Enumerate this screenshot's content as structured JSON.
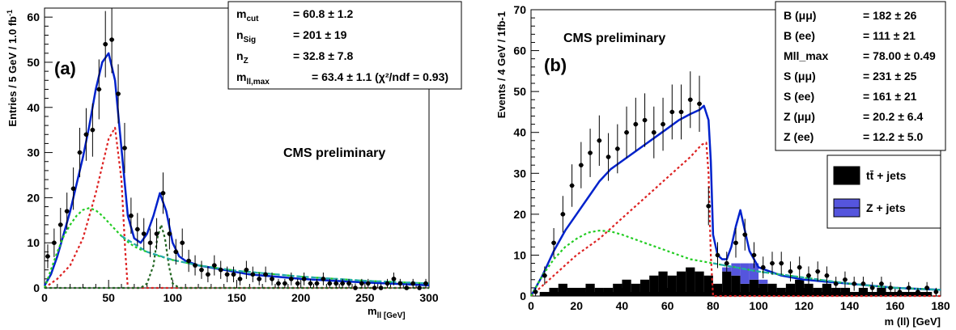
{
  "chart_data": [
    {
      "type": "scatter",
      "panel_label": "(a)",
      "annotation": "CMS preliminary",
      "xlabel": "m_ll [GeV]",
      "ylabel": "Entries / 5 GeV / 1.0 fb^-1",
      "xlim": [
        0,
        300
      ],
      "ylim": [
        0,
        62
      ],
      "xticks": [
        "0",
        "50",
        "100",
        "150",
        "200",
        "250",
        "300"
      ],
      "yticks": [
        "0",
        "10",
        "20",
        "30",
        "40",
        "50",
        "60"
      ],
      "stats": [
        {
          "label": "m_cut",
          "value": "= 60.8 ± 1.2"
        },
        {
          "label": "n_Sig",
          "value": "= 201 ± 19"
        },
        {
          "label": "n_Z",
          "value": "= 32.8 ± 7.8"
        },
        {
          "label": "m_ll,max",
          "value": "= 63.4 ± 1.1 (χ²/ndf = 0.93)"
        }
      ],
      "data_points": {
        "x": [
          2.5,
          7.5,
          12.5,
          17.5,
          22.5,
          27.5,
          32.5,
          37.5,
          42.5,
          47.5,
          52.5,
          57.5,
          62.5,
          67.5,
          72.5,
          77.5,
          82.5,
          87.5,
          92.5,
          97.5,
          102.5,
          107.5,
          112.5,
          117.5,
          122.5,
          127.5,
          132.5,
          137.5,
          142.5,
          147.5,
          152.5,
          157.5,
          162.5,
          167.5,
          172.5,
          177.5,
          182.5,
          187.5,
          192.5,
          197.5,
          202.5,
          207.5,
          212.5,
          217.5,
          222.5,
          227.5,
          232.5,
          237.5,
          242.5,
          247.5,
          252.5,
          257.5,
          262.5,
          267.5,
          272.5,
          277.5,
          282.5,
          287.5,
          292.5,
          297.5
        ],
        "y": [
          7,
          10,
          14,
          17,
          22,
          30,
          34,
          35,
          44,
          54,
          55,
          43,
          31,
          16,
          13,
          12,
          10,
          12,
          21,
          12,
          8,
          10,
          6,
          5,
          4,
          3,
          5,
          4,
          3,
          3,
          2,
          4,
          3,
          2,
          3,
          2,
          1,
          1,
          2,
          1,
          2,
          1,
          1,
          2,
          1,
          1,
          1,
          1,
          0,
          1,
          1,
          0,
          0,
          1,
          2,
          1,
          0,
          1,
          0,
          1
        ]
      },
      "series": [
        {
          "name": "",
          "role": "total fit",
          "color": "#0022cc",
          "style": "solid",
          "x": [
            0,
            5,
            10,
            15,
            20,
            25,
            30,
            35,
            40,
            45,
            50,
            55,
            60,
            65,
            70,
            75,
            80,
            85,
            90,
            95,
            100,
            105,
            110,
            120,
            140,
            160,
            200,
            250,
            300
          ],
          "y": [
            0.5,
            3,
            7,
            12,
            17,
            23,
            29,
            36,
            44,
            50,
            52,
            46,
            31,
            16,
            11,
            10,
            12,
            16,
            21,
            17,
            10,
            7,
            6,
            5,
            4,
            3,
            2,
            1.2,
            0.6
          ]
        },
        {
          "name": "",
          "role": "signal shape",
          "color": "#dd2222",
          "style": "dotted",
          "x": [
            0,
            10,
            20,
            30,
            35,
            40,
            45,
            50,
            55,
            60,
            63,
            65,
            70,
            300
          ],
          "y": [
            0,
            2,
            5,
            11,
            16,
            21,
            27,
            33,
            35.5,
            24,
            8,
            0,
            0,
            0
          ]
        },
        {
          "name": "",
          "role": "flat background",
          "color": "#22cc22",
          "style": "dotted",
          "x": [
            0,
            5,
            10,
            15,
            20,
            25,
            30,
            35,
            40,
            45,
            50,
            55,
            60,
            65,
            70,
            75,
            80,
            90,
            100,
            120,
            150,
            200,
            250,
            300
          ],
          "y": [
            0,
            4,
            8,
            11.5,
            14,
            16,
            17.3,
            17.7,
            17.2,
            16,
            14.5,
            13,
            11.5,
            10.2,
            9.2,
            8.5,
            8,
            7,
            6.2,
            5,
            3.8,
            2.5,
            1.6,
            1
          ]
        },
        {
          "name": "",
          "role": "Z peak",
          "color": "#226622",
          "style": "dotted",
          "x": [
            0,
            75,
            80,
            85,
            88,
            91,
            94,
            97,
            100,
            105,
            300
          ],
          "y": [
            0,
            0,
            1,
            5,
            11,
            14,
            11,
            5,
            1,
            0,
            0
          ]
        },
        {
          "name": "",
          "role": "background fit",
          "color": "#22aaaa",
          "style": "dashed",
          "x": [
            60,
            80,
            100,
            120,
            150,
            200,
            250,
            300
          ],
          "y": [
            11.5,
            8,
            6.2,
            5,
            3.8,
            2.5,
            1.6,
            1
          ]
        }
      ]
    },
    {
      "type": "scatter",
      "panel_label": "(b)",
      "annotation": "CMS preliminary",
      "xlabel": "m (ll) [GeV]",
      "ylabel": "Events / 4 GeV / 1fb-1",
      "xlim": [
        0,
        180
      ],
      "ylim": [
        0,
        70
      ],
      "xticks": [
        "0",
        "20",
        "40",
        "60",
        "80",
        "100",
        "120",
        "140",
        "160",
        "180"
      ],
      "yticks": [
        "0",
        "10",
        "20",
        "30",
        "40",
        "50",
        "60",
        "70"
      ],
      "stats": [
        {
          "label": "B (μμ)",
          "value": "= 182 ± 26"
        },
        {
          "label": "B (ee)",
          "value": "= 111 ± 21"
        },
        {
          "label": "Mll_max",
          "value": "= 78.00 ± 0.49"
        },
        {
          "label": "S (μμ)",
          "value": "= 231 ± 25"
        },
        {
          "label": "S (ee)",
          "value": "= 161 ± 21"
        },
        {
          "label": "Z (μμ)",
          "value": "= 20.2 ± 6.4"
        },
        {
          "label": "Z (ee)",
          "value": "= 12.2 ± 5.0"
        }
      ],
      "legend": [
        {
          "name": "tt̄ + jets",
          "color": "#000000"
        },
        {
          "name": "Z + jets",
          "color": "#5555dd"
        }
      ],
      "data_points": {
        "x": [
          2,
          6,
          10,
          14,
          18,
          22,
          26,
          30,
          34,
          38,
          42,
          46,
          50,
          54,
          58,
          62,
          66,
          70,
          74,
          78,
          82,
          86,
          90,
          94,
          98,
          102,
          106,
          110,
          114,
          118,
          122,
          126,
          130,
          134,
          138,
          142,
          146,
          150,
          154,
          158,
          162,
          166,
          170,
          174,
          178
        ],
        "y": [
          1,
          5,
          13,
          20,
          27,
          32,
          35,
          38,
          34,
          36,
          40,
          42,
          43,
          40,
          42,
          45,
          45,
          48,
          47,
          22,
          10,
          8,
          13,
          15,
          10,
          7,
          8,
          8,
          6,
          7,
          5,
          6,
          5,
          3,
          4,
          3,
          3,
          2,
          3,
          2,
          1,
          2,
          1,
          2,
          1
        ]
      },
      "series": [
        {
          "name": "",
          "role": "total fit",
          "color": "#0022cc",
          "style": "solid",
          "x": [
            0,
            5,
            10,
            15,
            20,
            25,
            30,
            35,
            40,
            45,
            50,
            55,
            60,
            65,
            70,
            74,
            76,
            78,
            79,
            80,
            82,
            84,
            86,
            88,
            90,
            92,
            94,
            96,
            98,
            100,
            105,
            110,
            120,
            140,
            160,
            180
          ],
          "y": [
            0,
            5,
            11,
            16,
            20,
            24,
            28,
            31,
            33,
            35,
            37,
            39,
            41,
            43,
            44.5,
            45.5,
            46.5,
            43,
            33,
            15,
            10,
            9,
            9,
            12,
            17,
            21,
            16,
            11,
            9,
            7,
            6,
            5,
            4,
            3,
            2,
            1.5
          ]
        },
        {
          "name": "",
          "role": "signal shape",
          "color": "#dd2222",
          "style": "dotted",
          "x": [
            0,
            10,
            20,
            30,
            40,
            50,
            60,
            70,
            75,
            77,
            78,
            79,
            80,
            180
          ],
          "y": [
            0,
            5,
            10,
            14,
            19,
            24,
            29,
            34,
            37,
            37.5,
            30,
            10,
            0,
            0
          ]
        },
        {
          "name": "",
          "role": "flat background",
          "color": "#22cc22",
          "style": "dotted",
          "x": [
            0,
            5,
            10,
            15,
            20,
            25,
            30,
            35,
            40,
            45,
            50,
            60,
            70,
            80,
            90,
            100,
            120,
            140,
            160,
            180
          ],
          "y": [
            0,
            5,
            9,
            12,
            14,
            15.5,
            16,
            15.8,
            15,
            14,
            13,
            11,
            9,
            8,
            7,
            6,
            4.5,
            3,
            2,
            1.5
          ]
        },
        {
          "name": "",
          "role": "background fit",
          "color": "#22aaaa",
          "style": "dashed",
          "x": [
            80,
            90,
            100,
            120,
            140,
            160,
            180
          ],
          "y": [
            8,
            7,
            6,
            4.5,
            3,
            2,
            1.5
          ]
        }
      ],
      "stack": {
        "bin_width": 4,
        "x": [
          2,
          6,
          10,
          14,
          18,
          22,
          26,
          30,
          34,
          38,
          42,
          46,
          50,
          54,
          58,
          62,
          66,
          70,
          74,
          78,
          82,
          86,
          90,
          94,
          98,
          102,
          106,
          110,
          114,
          118,
          122,
          126,
          130,
          134,
          138,
          142,
          146,
          150,
          154,
          158,
          162,
          166,
          170,
          174,
          178
        ],
        "ttbar": [
          0,
          1,
          2,
          3,
          2,
          2,
          3,
          2,
          2,
          3,
          4,
          3,
          4,
          5,
          6,
          5,
          6,
          7,
          6,
          5,
          3,
          6,
          5,
          3,
          4,
          3,
          3,
          2,
          3,
          4,
          3,
          2,
          3,
          2,
          2,
          1,
          2,
          1,
          2,
          1,
          1,
          1,
          1,
          1,
          0
        ],
        "zjets": [
          0,
          0,
          0,
          0,
          0,
          0,
          0,
          0,
          0,
          0,
          0,
          0,
          0,
          0,
          0,
          0,
          0,
          0,
          0,
          0,
          0,
          1,
          3,
          5,
          4,
          1,
          0,
          0,
          0,
          0,
          0,
          0,
          0,
          0,
          0,
          0,
          0,
          0,
          0,
          0,
          0,
          0,
          0,
          0,
          0
        ]
      }
    }
  ]
}
